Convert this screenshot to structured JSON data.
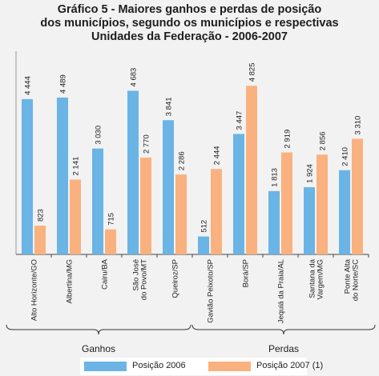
{
  "chart_data": {
    "type": "bar",
    "title": [
      "Gráfico 5 - Maiores ganhos e perdas de posição",
      "dos municípios, segundo os municípios e respectivas",
      "Unidades da Federação - 2006-2007"
    ],
    "categories": [
      "Alto Horizonte/GO",
      "Albertina/MG",
      "Cairu/BA",
      "São José do Povo/MT",
      "Queiroz/SP",
      "Gavião Peixoto/SP",
      "Borá/SP",
      "Jequiá da Praia/AL",
      "Santana da Vargem/MG",
      "Ponte Alta do Norte/SC"
    ],
    "series": [
      {
        "name": "Posição 2006",
        "color": "#6ab4e6",
        "values": [
          4444,
          4489,
          3030,
          4683,
          3841,
          512,
          3447,
          1813,
          1924,
          2410
        ],
        "labels": [
          "4 444",
          "4 489",
          "3 030",
          "4 683",
          "3 841",
          "512",
          "3 447",
          "1 813",
          "1 924",
          "2 410"
        ]
      },
      {
        "name": "Posição 2007 (1)",
        "color": "#f9b27f",
        "values": [
          823,
          2141,
          715,
          2770,
          2286,
          2444,
          4825,
          2919,
          2856,
          3310
        ],
        "labels": [
          "823",
          "2 141",
          "715",
          "2 770",
          "2 286",
          "2 444",
          "4 825",
          "2 919",
          "2 856",
          "3 310"
        ]
      }
    ],
    "groups": [
      {
        "label": "Ganhos",
        "categories": [
          "Alto Horizonte/GO",
          "Albertina/MG",
          "Cairu/BA",
          "São José do Povo/MT",
          "Queiroz/SP"
        ]
      },
      {
        "label": "Perdas",
        "categories": [
          "Gavião Peixoto/SP",
          "Borá/SP",
          "Jequiá da Praia/AL",
          "Santana da Vargem/MG",
          "Ponte Alta do Norte/SC"
        ]
      }
    ],
    "ylim": [
      0,
      5000
    ],
    "grid": false,
    "legend_position": "bottom"
  }
}
